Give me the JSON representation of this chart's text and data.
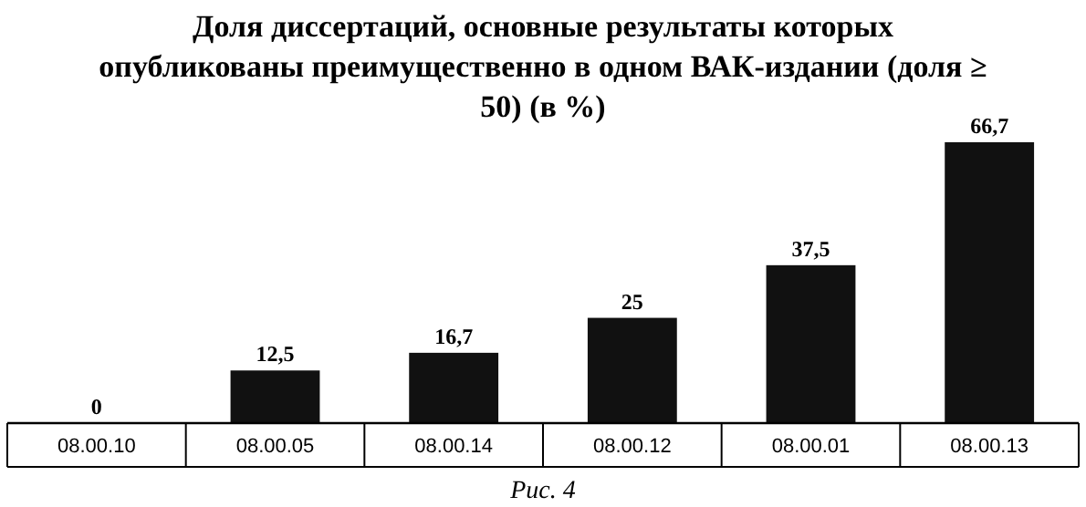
{
  "chart_data": {
    "type": "bar",
    "title": "Доля диссертаций, основные результаты которых опубликованы преимущественно в одном ВАК-издании (доля ≥ 50) (в %)",
    "categories": [
      "08.00.10",
      "08.00.05",
      "08.00.14",
      "08.00.12",
      "08.00.01",
      "08.00.13"
    ],
    "values": [
      0,
      12.5,
      16.7,
      25,
      37.5,
      66.7
    ],
    "value_labels": [
      "0",
      "12,5",
      "16,7",
      "25",
      "37,5",
      "66,7"
    ],
    "color": "#111111",
    "annotations": [
      "Рис. 4"
    ]
  }
}
